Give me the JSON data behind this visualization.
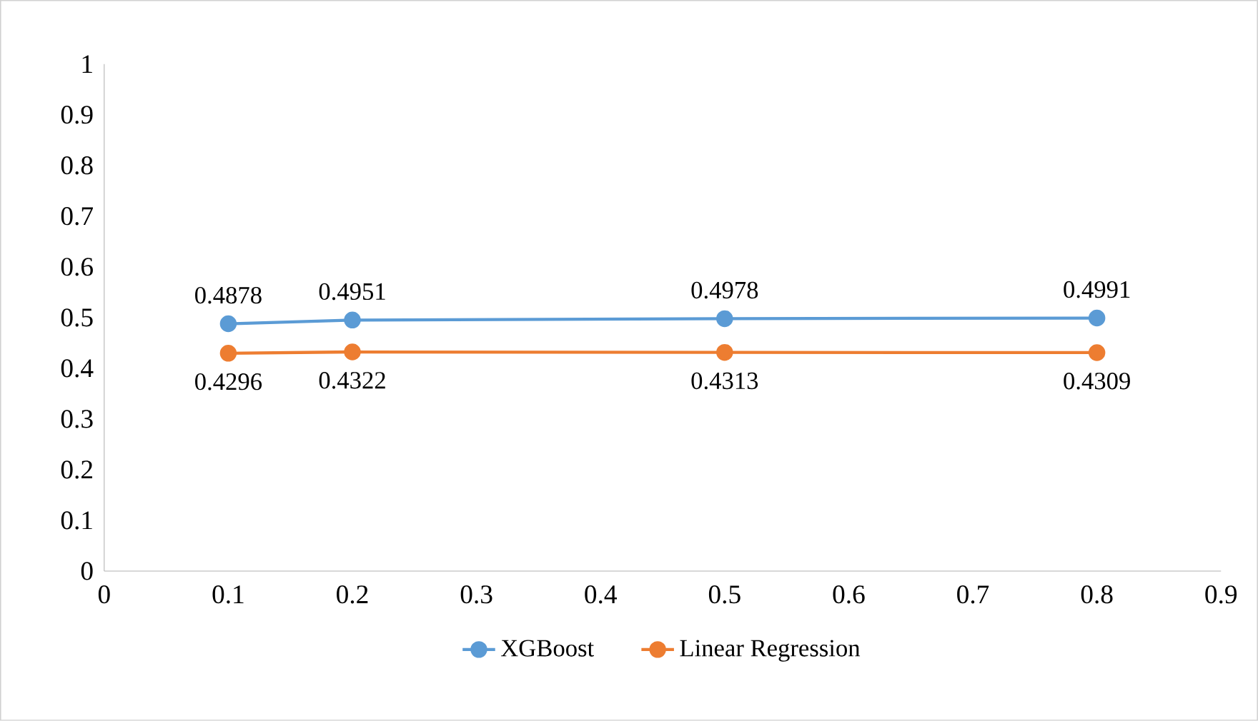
{
  "chart_data": {
    "type": "line",
    "x": [
      0.1,
      0.2,
      0.5,
      0.8
    ],
    "series": [
      {
        "name": "XGBoost",
        "color": "#5b9bd5",
        "values": [
          0.4878,
          0.4951,
          0.4978,
          0.4991
        ]
      },
      {
        "name": "Linear Regression",
        "color": "#ed7d31",
        "values": [
          0.4296,
          0.4322,
          0.4313,
          0.4309
        ]
      }
    ],
    "xlim": [
      0,
      0.9
    ],
    "xticks": [
      0,
      0.1,
      0.2,
      0.3,
      0.4,
      0.5,
      0.6,
      0.7,
      0.8,
      0.9
    ],
    "ylim": [
      0,
      1
    ],
    "yticks": [
      0,
      0.1,
      0.2,
      0.3,
      0.4,
      0.5,
      0.6,
      0.7,
      0.8,
      0.9,
      1
    ],
    "grid": false,
    "legend": "bottom",
    "marker": "circle",
    "line_style": "solid",
    "data_labels": true
  }
}
